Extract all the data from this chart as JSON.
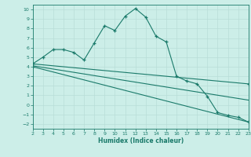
{
  "xlabel": "Humidex (Indice chaleur)",
  "bg_color": "#cceee8",
  "grid_color": "#b8ddd8",
  "line_color": "#1a7a6a",
  "x_min": 2,
  "x_max": 23,
  "y_min": -2.5,
  "y_max": 10.5,
  "yticks": [
    -2,
    -1,
    0,
    1,
    2,
    3,
    4,
    5,
    6,
    7,
    8,
    9,
    10
  ],
  "xticks": [
    2,
    3,
    4,
    5,
    6,
    7,
    8,
    9,
    10,
    11,
    12,
    13,
    14,
    15,
    16,
    17,
    18,
    19,
    20,
    21,
    22,
    23
  ],
  "line1_x": [
    2,
    3,
    4,
    5,
    6,
    7,
    8,
    9,
    10,
    11,
    12,
    13,
    14,
    15,
    16,
    17,
    18,
    19,
    20,
    21,
    22,
    23
  ],
  "line1_y": [
    4.3,
    5.0,
    5.8,
    5.8,
    5.5,
    4.7,
    6.5,
    8.3,
    7.8,
    9.3,
    10.1,
    9.2,
    7.2,
    6.6,
    3.0,
    2.5,
    2.2,
    0.9,
    -0.8,
    -1.1,
    -1.3,
    -1.8
  ],
  "line2_x": [
    2,
    23
  ],
  "line2_y": [
    4.3,
    2.2
  ],
  "line3_x": [
    2,
    23
  ],
  "line3_y": [
    4.1,
    0.5
  ],
  "line4_x": [
    2,
    23
  ],
  "line4_y": [
    4.0,
    -1.8
  ]
}
